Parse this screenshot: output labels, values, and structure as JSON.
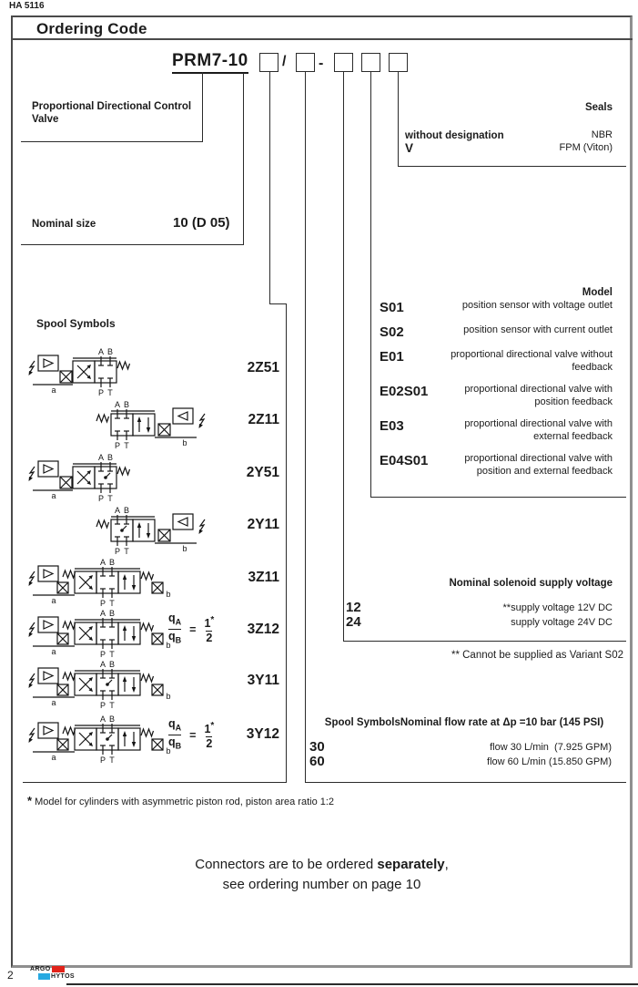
{
  "page": {
    "doc_code": "HA 5116",
    "title": "Ordering Code",
    "page_number": "2",
    "brand": {
      "line1": "ARGO",
      "line2": "HYTOS"
    }
  },
  "order_code": {
    "prefix": "PRM7-10",
    "slash": "/",
    "dash": "-"
  },
  "sections": {
    "product": {
      "label": "Proportional Directional Control Valve"
    },
    "nominal_size": {
      "label": "Nominal size",
      "value": "10 (D 05)"
    },
    "seals": {
      "header": "Seals",
      "rows": [
        {
          "code": "without designation",
          "desc": "NBR"
        },
        {
          "code": "V",
          "desc": "FPM (Viton)"
        }
      ]
    },
    "model": {
      "header": "Model",
      "rows": [
        {
          "code": "S01",
          "desc": "position sensor with voltage outlet"
        },
        {
          "code": "S02",
          "desc": "position sensor with current outlet"
        },
        {
          "code": "E01",
          "desc": "proportional directional valve without feedback"
        },
        {
          "code": "E02S01",
          "desc": "proportional directional valve with position feedback"
        },
        {
          "code": "E03",
          "desc": "proportional directional valve with external feedback"
        },
        {
          "code": "E04S01",
          "desc": "proportional directional valve with position and external feedback"
        }
      ]
    },
    "voltage": {
      "header": "Nominal solenoid supply voltage",
      "rows": [
        {
          "code": "12",
          "desc": "**supply voltage 12V DC"
        },
        {
          "code": "24",
          "desc": "supply voltage 24V DC"
        }
      ],
      "footnote": "** Cannot be supplied as Variant S02"
    },
    "flow": {
      "header": "Spool SymbolsNominal flow rate at Δp =10 bar (145 PSI)",
      "rows": [
        {
          "code": "30",
          "desc": "flow 30 L/min  (7.925 GPM)"
        },
        {
          "code": "60",
          "desc": "flow 60 L/min (15.850 GPM)"
        }
      ]
    },
    "spool": {
      "header": "Spool Symbols",
      "ports": {
        "a": "A",
        "b": "B",
        "p": "P",
        "t": "T",
        "tag_a": "a",
        "tag_b": "b"
      },
      "rows": [
        {
          "code": "2Z51",
          "type": "sol-left"
        },
        {
          "code": "2Z11",
          "type": "sol-right"
        },
        {
          "code": "2Y51",
          "type": "sol-left"
        },
        {
          "code": "2Y11",
          "type": "sol-right"
        },
        {
          "code": "3Z11",
          "type": "three"
        },
        {
          "code": "3Z12",
          "type": "three",
          "ratio": true
        },
        {
          "code": "3Y11",
          "type": "three"
        },
        {
          "code": "3Y12",
          "type": "three",
          "ratio": true
        }
      ],
      "ratio": {
        "num_main": "q",
        "num_sub": "A",
        "den_main": "q",
        "den_sub": "B",
        "equals": "=",
        "rhs_num": "1",
        "rhs_den": "2",
        "star": "*"
      }
    },
    "footnote_star": "*",
    "footnote_text": "Model for cylinders with asymmetric piston rod, piston area ratio 1:2",
    "connectors_note": {
      "line1_pre": "Connectors are to be ordered ",
      "line1_bold": "separately",
      "line1_post": ",",
      "line2": "see ordering number on page 10"
    }
  },
  "colors": {
    "logo_red": "#e2231a",
    "logo_blue": "#27a9e1",
    "line": "#2b2b2b"
  }
}
